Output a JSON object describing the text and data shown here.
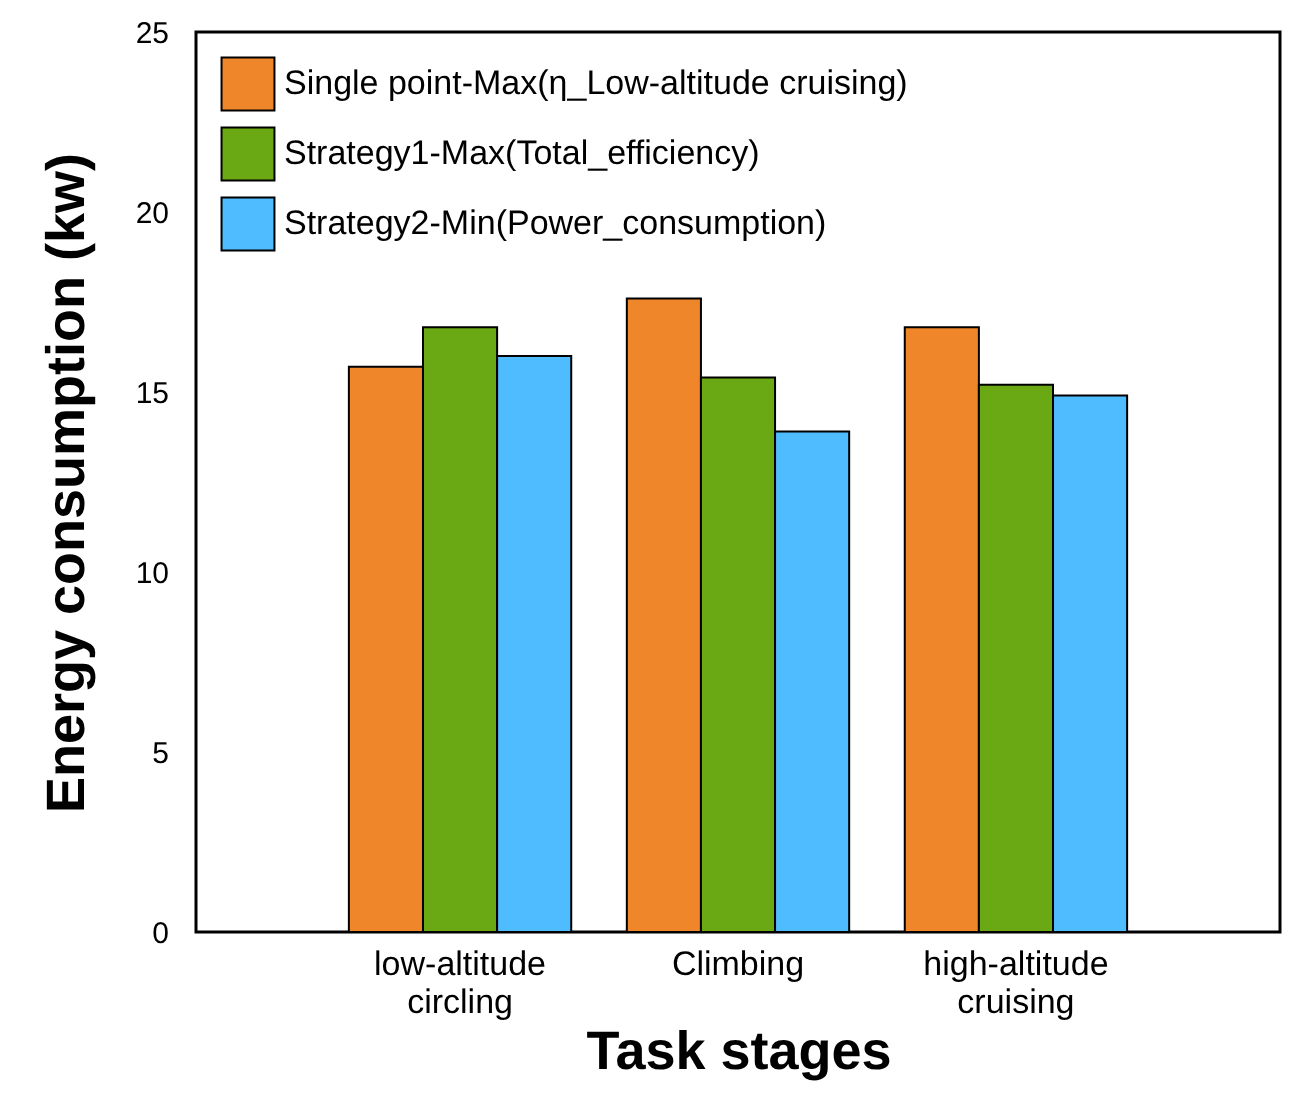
{
  "chart_data": {
    "type": "bar",
    "xlabel": "Task stages",
    "ylabel": "Energy consumption (kw)",
    "categories": [
      "low-altitude circling",
      "Climbing",
      "high-altitude cruising"
    ],
    "series": [
      {
        "name": "Single point-Max(η_Low-altitude cruising)",
        "color": "#f0862a",
        "values": [
          15.7,
          17.6,
          16.8
        ]
      },
      {
        "name": "Strategy1-Max(Total_efficiency)",
        "color": "#6aa914",
        "values": [
          16.8,
          15.4,
          15.2
        ]
      },
      {
        "name": "Strategy2-Min(Power_consumption)",
        "color": "#4fbcff",
        "values": [
          16.0,
          13.9,
          14.9
        ]
      }
    ],
    "ylim": [
      0,
      25
    ],
    "yticks": [
      0,
      5,
      10,
      15,
      20,
      25
    ],
    "grid": false,
    "legend": "top left"
  }
}
